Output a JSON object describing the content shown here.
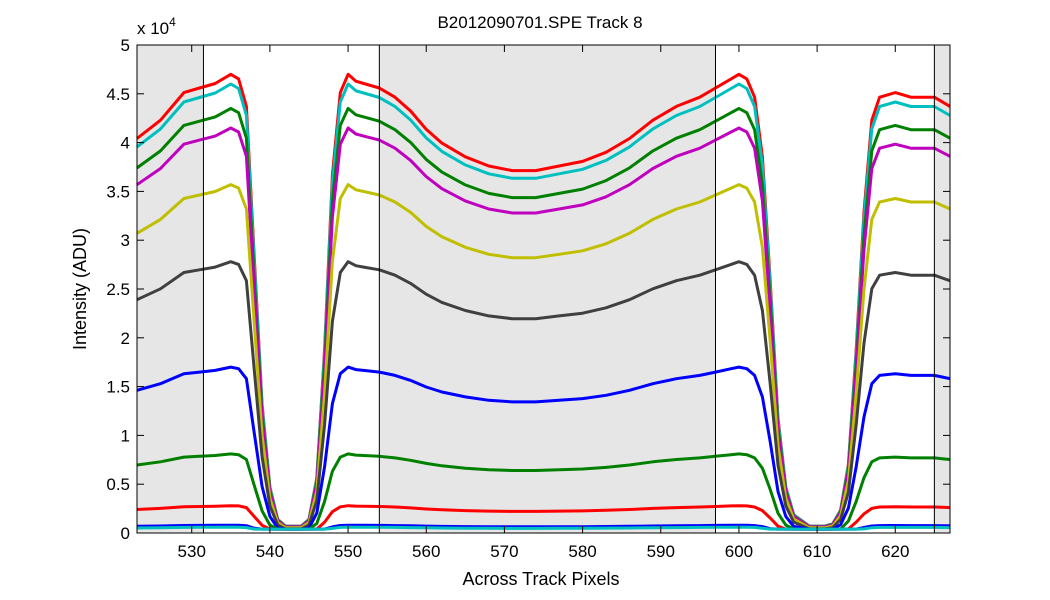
{
  "chart_data": {
    "type": "line",
    "title": "B2012090701.SPE   Track 8",
    "xlabel": "Across Track Pixels",
    "ylabel": "Intensity (ADU)",
    "y_multiplier_label": "x 10",
    "y_multiplier_exponent": "4",
    "xlim": [
      523,
      627
    ],
    "ylim": [
      0,
      5
    ],
    "xticks": [
      530,
      540,
      550,
      560,
      570,
      580,
      590,
      600,
      610,
      620
    ],
    "yticks": [
      0,
      0.5,
      1,
      1.5,
      2,
      2.5,
      3,
      3.5,
      4,
      4.5,
      5
    ],
    "ytick_labels": [
      "0",
      "0.5",
      "1",
      "1.5",
      "2",
      "2.5",
      "3",
      "3.5",
      "4",
      "4.5",
      "5"
    ],
    "grid": false,
    "shaded_regions": [
      [
        523,
        531.5
      ],
      [
        554,
        597
      ],
      [
        625,
        627
      ]
    ],
    "vertical_lines": [
      531.5,
      554,
      597,
      625
    ],
    "x": [
      523,
      526,
      529,
      531,
      533,
      535,
      536,
      537,
      538,
      539,
      540,
      541,
      542,
      543,
      544,
      545,
      546,
      547,
      548,
      549,
      550,
      551,
      552,
      554,
      556,
      558,
      560,
      562,
      565,
      568,
      571,
      574,
      577,
      580,
      583,
      586,
      589,
      592,
      595,
      597,
      599,
      600,
      601,
      602,
      603,
      604,
      605,
      606,
      607,
      609,
      611,
      612,
      613,
      614,
      615,
      616,
      617,
      618,
      620,
      622,
      624,
      625,
      626,
      627
    ],
    "shape": [
      0.86,
      0.9,
      0.96,
      0.97,
      0.98,
      1.0,
      0.99,
      0.93,
      0.6,
      0.28,
      0.1,
      0.03,
      0.015,
      0.015,
      0.015,
      0.03,
      0.12,
      0.4,
      0.78,
      0.96,
      1.0,
      0.985,
      0.98,
      0.97,
      0.95,
      0.92,
      0.88,
      0.85,
      0.82,
      0.8,
      0.79,
      0.79,
      0.8,
      0.81,
      0.83,
      0.86,
      0.9,
      0.93,
      0.95,
      0.97,
      0.99,
      1.0,
      0.99,
      0.95,
      0.82,
      0.55,
      0.25,
      0.1,
      0.04,
      0.015,
      0.015,
      0.02,
      0.05,
      0.15,
      0.4,
      0.7,
      0.9,
      0.95,
      0.96,
      0.95,
      0.95,
      0.95,
      0.94,
      0.93
    ],
    "series": [
      {
        "color": "#ff0000",
        "peak": 4.7
      },
      {
        "color": "#00bfbf",
        "peak": 4.6
      },
      {
        "color": "#008000",
        "peak": 4.35
      },
      {
        "color": "#bf00bf",
        "peak": 4.15
      },
      {
        "color": "#bfbf00",
        "peak": 3.57
      },
      {
        "color": "#404040",
        "peak": 2.78
      },
      {
        "color": "#0000ff",
        "peak": 1.7
      },
      {
        "color": "#008000",
        "peak": 0.81
      },
      {
        "color": "#ff0000",
        "peak": 0.28
      },
      {
        "color": "#0000ff",
        "peak": 0.08
      },
      {
        "color": "#00bfbf",
        "peak": 0.06
      }
    ]
  }
}
